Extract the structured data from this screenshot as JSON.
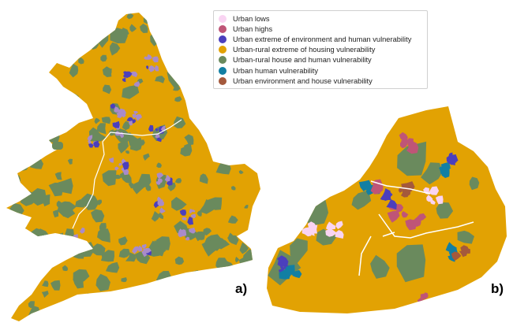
{
  "legend": {
    "items": [
      {
        "label": "Urban lows",
        "color": "#f9d4f2"
      },
      {
        "label": "Urban highs",
        "color": "#bf5577"
      },
      {
        "label": "Urban extreme of environment and human vulnerability",
        "color": "#4b3fbd"
      },
      {
        "label": "Urban-rural extreme of housing vulnerability",
        "color": "#e2a203"
      },
      {
        "label": "Urban-rural house and human vulnerability",
        "color": "#6a8a5d"
      },
      {
        "label": "Urban human vulnerability",
        "color": "#127fa3"
      },
      {
        "label": "Urban environment and house vulnerability",
        "color": "#a4593c"
      }
    ]
  },
  "panels": {
    "a_label": "a)",
    "b_label": "b)"
  },
  "colors": {
    "orange": "#e2a203",
    "green": "#6a8a5d",
    "pink": "#f9d4f2",
    "magenta": "#bf5577",
    "purple": "#4b3fbd",
    "teal": "#127fa3",
    "brown": "#a4593c",
    "lilac": "#a98bc9",
    "border": "#ffffff"
  }
}
